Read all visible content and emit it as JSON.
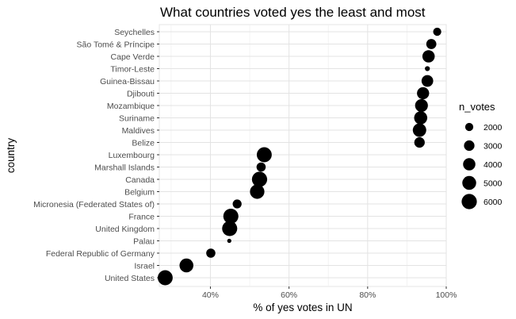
{
  "chart_data": {
    "type": "scatter",
    "title": "What countries voted yes the least and most",
    "xlabel": "% of yes votes in UN",
    "ylabel": "country",
    "xlim": [
      0.27,
      1.0
    ],
    "x_ticks": [
      {
        "value": 0.4,
        "label": "40%"
      },
      {
        "value": 0.6,
        "label": "60%"
      },
      {
        "value": 0.8,
        "label": "80%"
      },
      {
        "value": 1.0,
        "label": "100%"
      }
    ],
    "grid": true,
    "legend": {
      "title": "n_votes",
      "placement": "right",
      "entries": [
        {
          "label": "2000",
          "value": 2000
        },
        {
          "label": "3000",
          "value": 3000
        },
        {
          "label": "4000",
          "value": 4000
        },
        {
          "label": "5000",
          "value": 5000
        },
        {
          "label": "6000",
          "value": 6000
        }
      ]
    },
    "size_range": [
      1000,
      6500
    ],
    "point_color": "#000000",
    "categories": [
      "Seychelles",
      "São Tomé & Príncipe",
      "Cape Verde",
      "Timor-Leste",
      "Guinea-Bissau",
      "Djibouti",
      "Mozambique",
      "Suriname",
      "Maldives",
      "Belize",
      "Luxembourg",
      "Marshall Islands",
      "Canada",
      "Belgium",
      "Micronesia (Federated States of)",
      "France",
      "United Kingdom",
      "Palau",
      "Federal Republic of Germany",
      "Israel",
      "United States"
    ],
    "series": [
      {
        "x": [
          0.977,
          0.962,
          0.955,
          0.952,
          0.952,
          0.941,
          0.937,
          0.935,
          0.932,
          0.932,
          0.537,
          0.529,
          0.525,
          0.519,
          0.468,
          0.452,
          0.449,
          0.448,
          0.401,
          0.339,
          0.285
        ],
        "n_votes": [
          2000,
          2800,
          4000,
          1200,
          3600,
          3900,
          4300,
          4500,
          4700,
          3000,
          5800,
          2400,
          6000,
          5400,
          2300,
          5900,
          5900,
          1100,
          2400,
          5000,
          5800
        ]
      }
    ]
  }
}
